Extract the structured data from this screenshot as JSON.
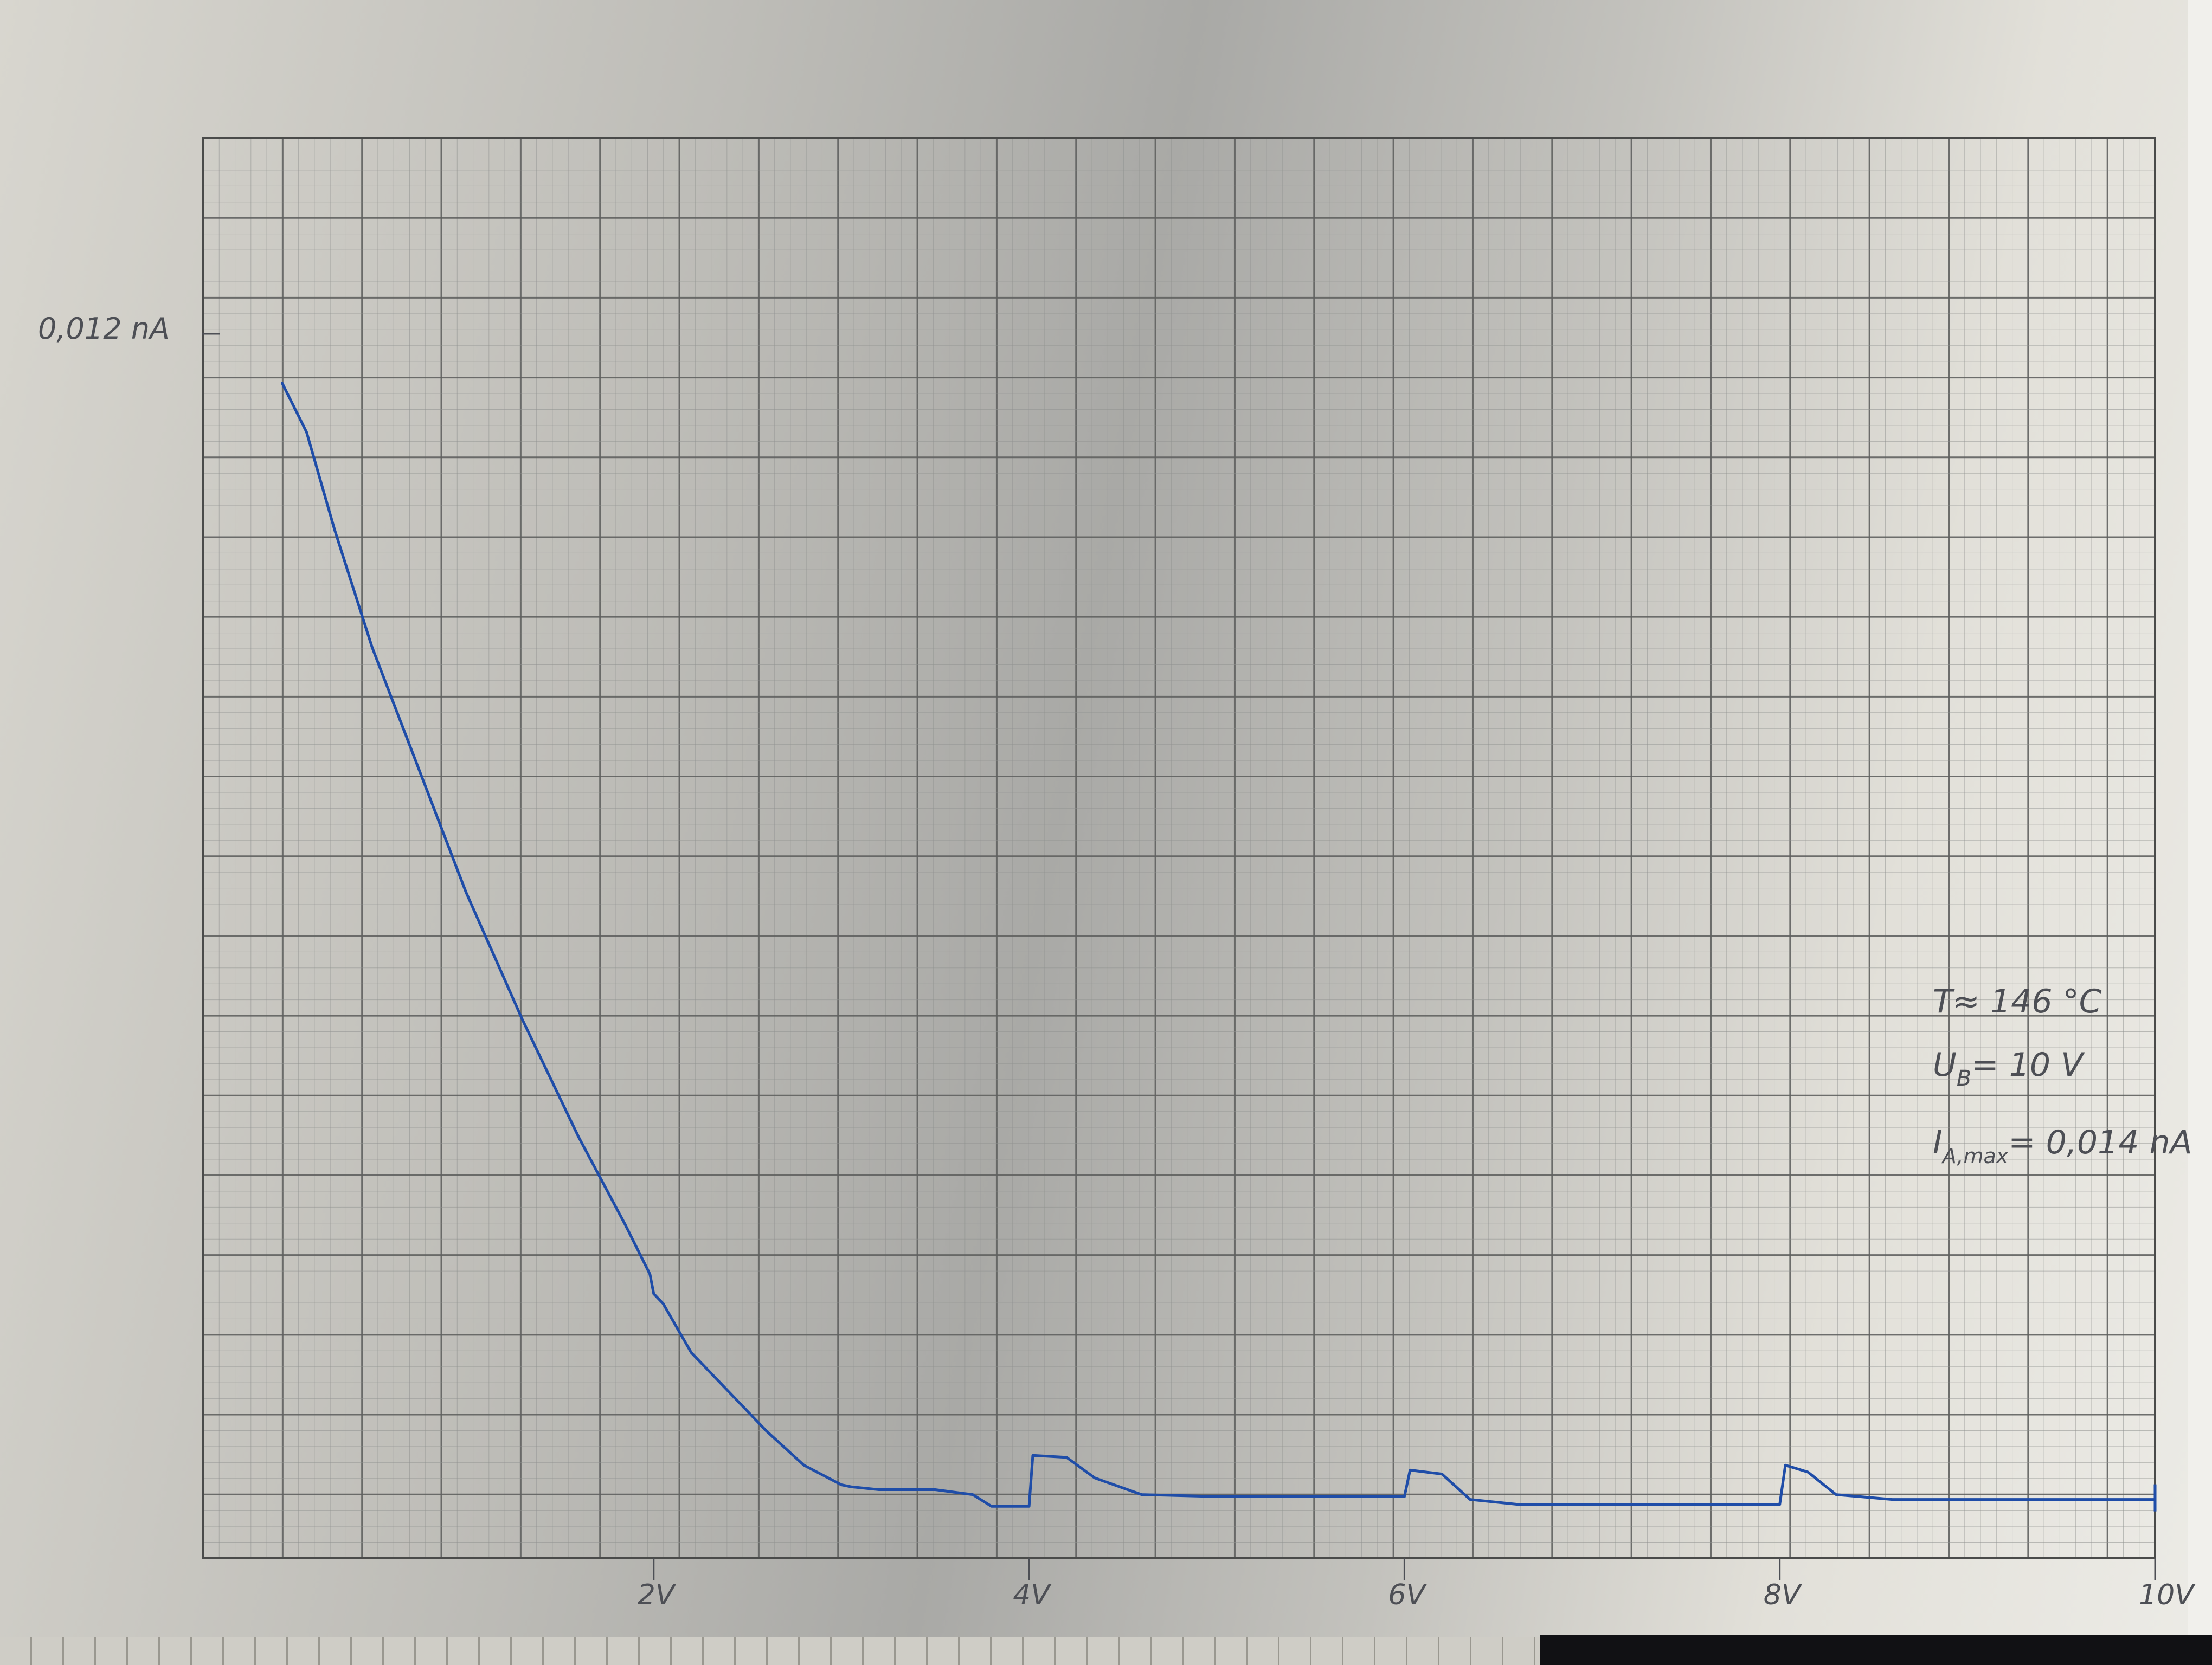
{
  "chart_data": {
    "type": "line",
    "xlabel": "",
    "ylabel": "",
    "x_ticks": [
      "2V",
      "4V",
      "6V",
      "8V",
      "10V"
    ],
    "x_tick_values": [
      2,
      4,
      6,
      8,
      10
    ],
    "y_tick_label": "0,012 nA",
    "y_tick_value": 0.012,
    "xlim": [
      -0.4,
      10
    ],
    "ylim": [
      0,
      0.0145
    ],
    "grid": true,
    "series": [
      {
        "color": "#1f4da8",
        "x": [
          0.02,
          0.15,
          0.3,
          0.5,
          0.8,
          1.0,
          1.3,
          1.6,
          1.85,
          1.98,
          2.0,
          2.05,
          2.2,
          2.4,
          2.6,
          2.8,
          3.0,
          3.05,
          3.2,
          3.5,
          3.7,
          3.8,
          3.95,
          4.0,
          4.02,
          4.2,
          4.35,
          4.6,
          5.0,
          6.0,
          6.03,
          6.2,
          6.35,
          6.6,
          7.0,
          8.0,
          8.03,
          8.15,
          8.3,
          8.6,
          9.0,
          9.5,
          10.0
        ],
        "y": [
          0.012,
          0.0115,
          0.0105,
          0.0093,
          0.0078,
          0.0068,
          0.0055,
          0.0043,
          0.0034,
          0.0029,
          0.0027,
          0.0026,
          0.0021,
          0.0017,
          0.0013,
          0.00095,
          0.00075,
          0.00073,
          0.0007,
          0.0007,
          0.00065,
          0.00053,
          0.00053,
          0.00053,
          0.00105,
          0.00103,
          0.00082,
          0.00065,
          0.00063,
          0.00063,
          0.0009,
          0.00086,
          0.0006,
          0.00055,
          0.00055,
          0.00055,
          0.00095,
          0.00088,
          0.00065,
          0.0006,
          0.0006,
          0.0006,
          0.0006
        ]
      }
    ],
    "annotations": [
      "T≈ 146 °C",
      "U_B = 10 V",
      "I_A,max = 0,014 nA"
    ]
  },
  "annotations_text": {
    "temp": "T≈ 146 °C",
    "voltage_U": "U",
    "voltage_sub": "B",
    "voltage_val": "= 10 V",
    "current_I": "I",
    "current_sub": "A,max",
    "current_val": "= 0,014 nA"
  }
}
